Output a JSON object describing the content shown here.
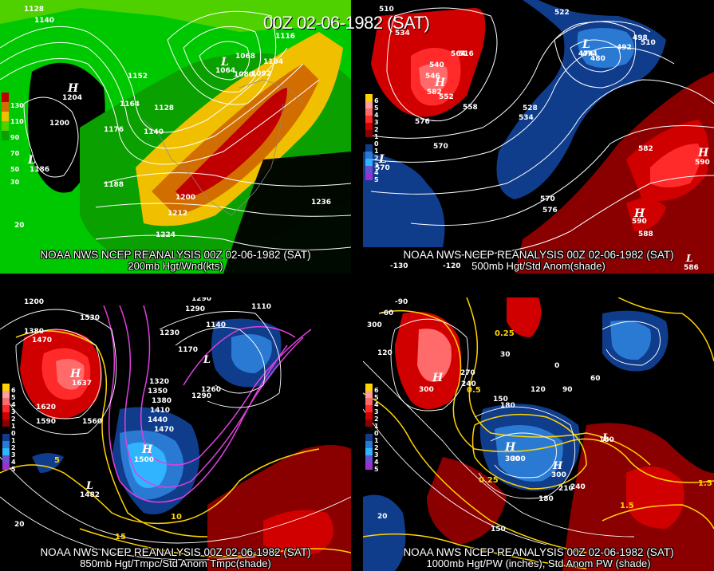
{
  "main_title": "00Z 02-06-1982 (SAT)",
  "panels": {
    "p1": {
      "caption1": "NOAA NWS NCEP REANALYSIS 00Z 02-06-1982 (SAT)",
      "caption2": "200mb Hgt/Wnd(kts)",
      "legend": [
        "130",
        "110",
        "90",
        "70",
        "50",
        "30"
      ],
      "legend_colors": [
        "#c00000",
        "#d26e00",
        "#f0c000",
        "#4fd100",
        "#0aa000",
        "#00c800"
      ],
      "labels": [
        "1128",
        "1140",
        "1152",
        "1164",
        "1176",
        "1188",
        "1200",
        "1212",
        "1224",
        "1236",
        "1068",
        "1080",
        "1092",
        "1104",
        "1116",
        "1128",
        "1140",
        "1200",
        "20"
      ],
      "extrema": [
        {
          "sym": "H",
          "val": "1204"
        },
        {
          "sym": "L",
          "val": "1186"
        },
        {
          "sym": "L",
          "val": "1064"
        }
      ]
    },
    "p2": {
      "caption1": "NOAA NWS NCEP REANALYSIS 00Z 02-06-1982 (SAT)",
      "caption2": "500mb Hgt/Std Anom(shade)",
      "legend": [
        "6",
        "5",
        "4",
        "3",
        "2",
        "1",
        "0",
        "1",
        "2",
        "3",
        "4",
        "5"
      ],
      "legend_colors": [
        "#ffd400",
        "#ffa0a0",
        "#ff6a6a",
        "#ff2a2a",
        "#d10000",
        "#8a0000",
        "#000000",
        "#103c8c",
        "#2a7ad4",
        "#30b4ff",
        "#6a50d0",
        "#9a30d0"
      ],
      "labels": [
        "510",
        "534",
        "564",
        "546",
        "540",
        "516",
        "522",
        "552",
        "558",
        "528",
        "534",
        "576",
        "570",
        "582",
        "570",
        "576",
        "588",
        "474",
        "480",
        "492",
        "498",
        "510",
        "-130",
        "-120"
      ],
      "extrema": [
        {
          "sym": "H",
          "val": "582"
        },
        {
          "sym": "H",
          "val": "590"
        },
        {
          "sym": "H",
          "val": "590"
        },
        {
          "sym": "L",
          "val": "474"
        },
        {
          "sym": "L",
          "val": "570"
        },
        {
          "sym": "L",
          "val": "586"
        }
      ]
    },
    "p3": {
      "caption1": "NOAA NWS NCEP REANALYSIS 00Z 02-06-1982 (SAT)",
      "caption2": "850mb Hgt/Tmpc/Std Anom Tmpc(shade)",
      "legend": [
        "6",
        "5",
        "4",
        "3",
        "2",
        "1",
        "0",
        "1",
        "2",
        "3",
        "4",
        "5"
      ],
      "legend_colors": [
        "#ffd400",
        "#ffa0a0",
        "#ff6a6a",
        "#ff2a2a",
        "#d10000",
        "#8a0000",
        "#000000",
        "#103c8c",
        "#2a7ad4",
        "#30b4ff",
        "#6a50d0",
        "#9a30d0"
      ],
      "labels": [
        "1200",
        "1290",
        "1530",
        "1380",
        "1470",
        "1230",
        "1170",
        "1290",
        "1140",
        "1110",
        "1320",
        "1350",
        "1380",
        "1410",
        "1440",
        "1470",
        "1290",
        "1260",
        "1620",
        "1590",
        "1560",
        "1500",
        "15",
        "10",
        "5",
        "20"
      ],
      "extrema": [
        {
          "sym": "H",
          "val": "1637"
        },
        {
          "sym": "H",
          "val": "1500"
        },
        {
          "sym": "L",
          "val": "1482"
        },
        {
          "sym": "L",
          "val": "1170"
        }
      ]
    },
    "p4": {
      "caption1": "NOAA NWS NCEP REANALYSIS 00Z 02-06-1982 (SAT)",
      "caption2": "1000mb Hgt/PW (inches), Std Anom PW (shade)",
      "legend": [
        "6",
        "5",
        "4",
        "3",
        "2",
        "1",
        "0",
        "1",
        "2",
        "3",
        "4",
        "5"
      ],
      "legend_colors": [
        "#ffd400",
        "#ffa0a0",
        "#ff6a6a",
        "#ff2a2a",
        "#d10000",
        "#8a0000",
        "#000000",
        "#103c8c",
        "#2a7ad4",
        "#30b4ff",
        "#6a50d0",
        "#9a30d0"
      ],
      "labels": [
        "-90",
        "-60",
        "300",
        "120",
        "270",
        "240",
        "0.5",
        "30",
        "0.25",
        "60",
        "90",
        "120",
        "150",
        "180",
        "0",
        "300",
        "240",
        "210",
        "180",
        "180",
        "150",
        "20",
        "1.5",
        "1.5",
        "0.25"
      ],
      "extrema": [
        {
          "sym": "H",
          "val": "300"
        },
        {
          "sym": "H",
          "val": "300"
        },
        {
          "sym": "H",
          "val": "300"
        },
        {
          "sym": "L",
          "val": "180"
        }
      ]
    }
  }
}
